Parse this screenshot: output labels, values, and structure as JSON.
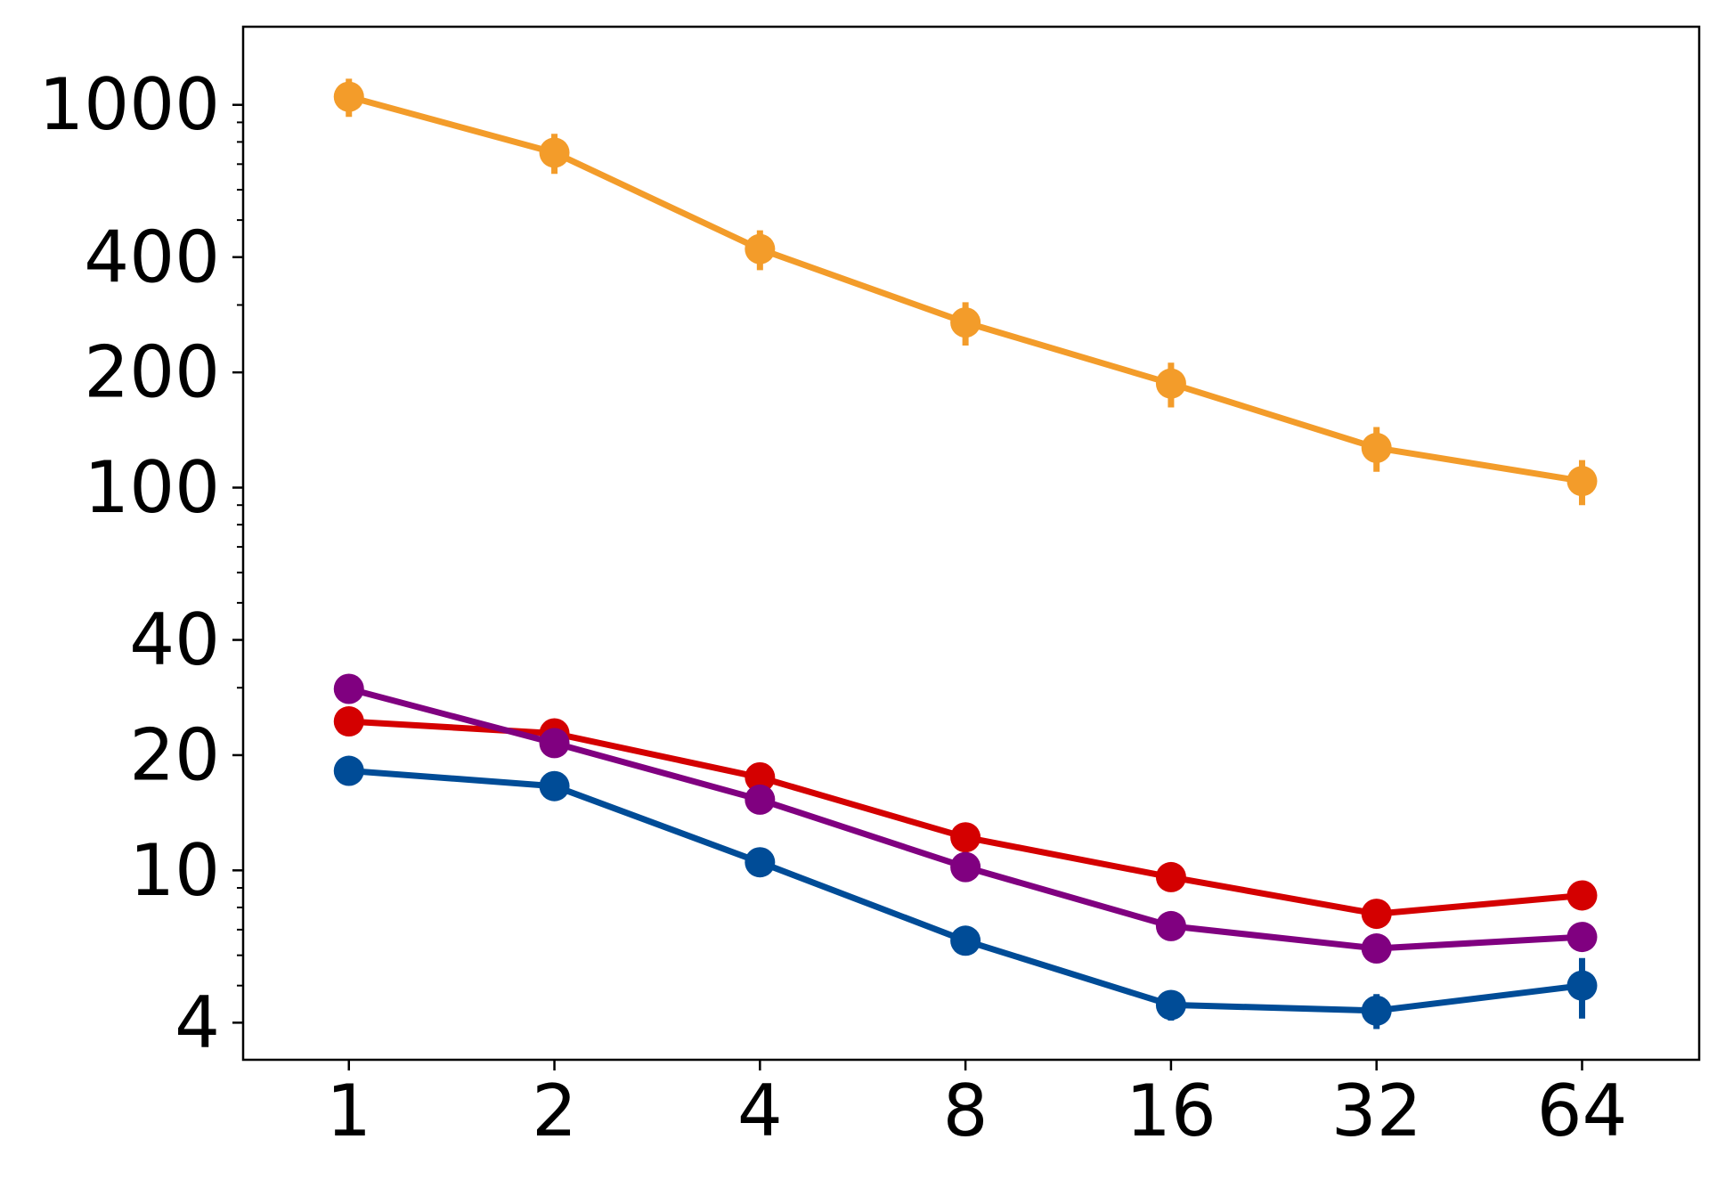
{
  "chart_data": {
    "type": "line",
    "title": "",
    "xlabel": "",
    "ylabel": "",
    "x_scale": "log2",
    "y_scale": "log",
    "x": [
      1,
      2,
      4,
      8,
      16,
      32,
      64
    ],
    "x_tick_labels": [
      "1",
      "2",
      "4",
      "8",
      "16",
      "32",
      "64"
    ],
    "y_ticks": [
      4,
      10,
      20,
      40,
      100,
      200,
      400,
      1000
    ],
    "y_tick_labels": [
      "4",
      "10",
      "20",
      "40",
      "100",
      "200",
      "400",
      "1000"
    ],
    "xlim": [
      0.7,
      95
    ],
    "ylim": [
      3.2,
      1600
    ],
    "grid": false,
    "legend": "none",
    "series": [
      {
        "color": "#f39c2a",
        "values": [
          1050,
          750,
          420,
          270,
          187,
          127,
          104
        ],
        "errors": [
          120,
          90,
          50,
          35,
          25,
          17,
          14
        ]
      },
      {
        "color": "#d40000",
        "values": [
          24.5,
          22.8,
          17.5,
          12.2,
          9.6,
          7.7,
          8.6
        ],
        "errors": [
          1.6,
          1.2,
          0.8,
          0.6,
          0.5,
          0.4,
          0.5
        ]
      },
      {
        "color": "#800080",
        "values": [
          29.8,
          21.5,
          15.3,
          10.2,
          7.15,
          6.25,
          6.7
        ],
        "errors": [
          1.2,
          0.8,
          0.6,
          0.4,
          0.3,
          0.3,
          0.3
        ]
      },
      {
        "color": "#004c97",
        "values": [
          18.2,
          16.6,
          10.5,
          6.55,
          4.45,
          4.3,
          5.0
        ],
        "errors": [
          0.8,
          0.7,
          0.5,
          0.35,
          0.4,
          0.45,
          0.9
        ]
      }
    ]
  }
}
